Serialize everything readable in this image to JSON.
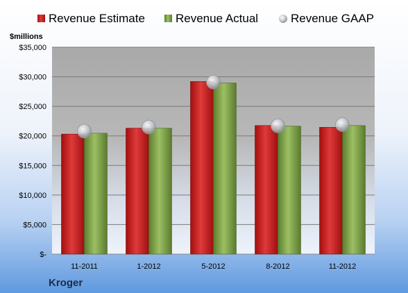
{
  "colors": {
    "estimate": "#d42020",
    "actual": "#7ea54a",
    "gaap": "#c0c4cc",
    "text": "#000000",
    "company": "#1b2d4a"
  },
  "chart_data": {
    "type": "bar",
    "title": "",
    "unit_label": "$millions",
    "company": "Kroger",
    "legend_position": "top",
    "ylim": [
      0,
      35000
    ],
    "yticks": [
      0,
      5000,
      10000,
      15000,
      20000,
      25000,
      30000,
      35000
    ],
    "ytick_labels": [
      "$-",
      "$5,000",
      "$10,000",
      "$15,000",
      "$20,000",
      "$25,000",
      "$30,000",
      "$35,000"
    ],
    "grid": true,
    "categories": [
      "11-2011",
      "1-2012",
      "5-2012",
      "8-2012",
      "11-2012"
    ],
    "series": [
      {
        "name": "Revenue Estimate",
        "kind": "bar",
        "values": [
          20300,
          21300,
          29200,
          21750,
          21450
        ]
      },
      {
        "name": "Revenue Actual",
        "kind": "bar",
        "values": [
          20450,
          21300,
          28950,
          21650,
          21750
        ]
      },
      {
        "name": "Revenue GAAP",
        "kind": "marker",
        "values": [
          20800,
          21500,
          29100,
          21700,
          21900
        ]
      }
    ]
  }
}
